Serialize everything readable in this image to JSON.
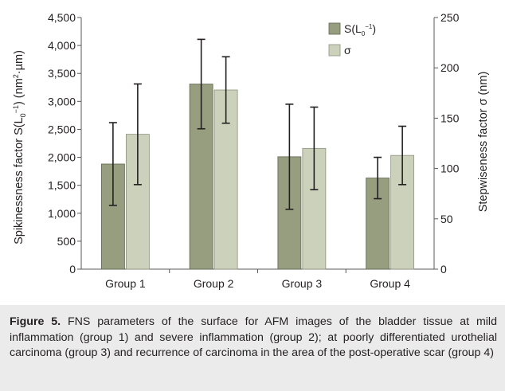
{
  "chart_data": {
    "type": "bar",
    "categories": [
      "Group 1",
      "Group 2",
      "Group 3",
      "Group 4"
    ],
    "series": [
      {
        "name": "S(L0−1)",
        "axis": "left",
        "color": "#969e7f",
        "values": [
          1880,
          3310,
          2010,
          1630
        ],
        "error": [
          740,
          800,
          940,
          370
        ]
      },
      {
        "name": "σ",
        "axis": "right",
        "color": "#ccd1bb",
        "values": [
          134,
          178,
          120,
          113
        ],
        "error": [
          50,
          33,
          41,
          29
        ]
      }
    ],
    "left_axis": {
      "label": "Spikinessness factor S(L0−1) (nm²·µm)",
      "ylim": [
        0,
        4500
      ],
      "ticks": [
        "0",
        "500",
        "1,000",
        "1,500",
        "2,000",
        "2,500",
        "3,000",
        "3,500",
        "4,000",
        "4,500"
      ]
    },
    "right_axis": {
      "label": "Stepwiseness factor σ (nm)",
      "ylim": [
        0,
        250
      ],
      "ticks": [
        "0",
        "50",
        "100",
        "150",
        "200",
        "250"
      ]
    },
    "legend": {
      "placement": "top-right",
      "items": [
        {
          "label": "S(L",
          "sub": "0",
          "sup": "−1",
          "tail": ")"
        },
        {
          "label": "σ"
        }
      ]
    },
    "grid": false
  },
  "caption": {
    "label": "Figure 5.",
    "text": "FNS parameters of the surface for AFM images of the bladder tissue at mild inflammation (group 1) and severe inflammation (group 2); at poorly differentiated urothelial carcinoma (group 3) and recurrence of carcinoma in the area of the post-operative scar (group 4)"
  }
}
